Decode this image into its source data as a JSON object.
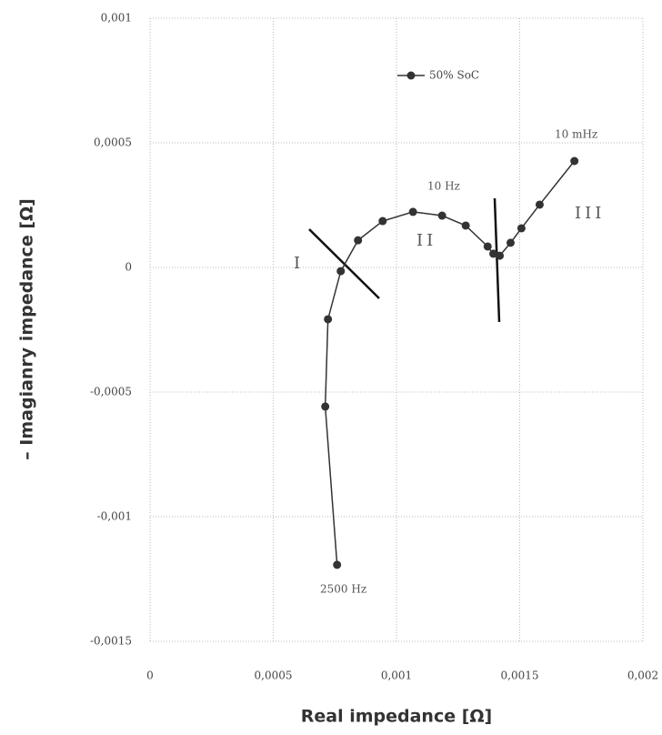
{
  "chart_data": {
    "type": "scatter_line",
    "x_label": "Real impedance [Ω]",
    "y_label": "– Imagianry impedance [Ω]",
    "annotations": [
      "2500 Hz",
      "10 Hz",
      "10 mHz",
      "I",
      "II",
      "III"
    ],
    "series": [
      {
        "name": "50% SoC",
        "color": "#333333",
        "x": [
          0.000759,
          0.000711,
          0.000722,
          0.000774,
          0.000844,
          0.000944,
          0.001067,
          0.001185,
          0.001281,
          0.00137,
          0.001393,
          0.001419,
          0.001463,
          0.001507,
          0.001581,
          0.001722
        ],
        "values": [
          -0.001193,
          -0.000558,
          -0.000208,
          -1.5e-05,
          0.000109,
          0.000186,
          0.000223,
          0.000208,
          0.000168,
          8.4e-05,
          5.5e-05,
          4.7e-05,
          9.9e-05,
          0.000157,
          0.000252,
          0.000427
        ]
      }
    ],
    "xlim": [
      0,
      0.002
    ],
    "xticks": [
      0,
      {
        "value": 0.0005,
        "label": "0,0005"
      },
      {
        "value": 0.001,
        "label": "0,001"
      },
      {
        "value": 0.0015,
        "label": "0,0015"
      },
      {
        "value": 0.002,
        "label": "0,002"
      }
    ],
    "ylim": [
      -0.0015,
      0.001
    ],
    "yticks": [
      {
        "value": -0.0015,
        "label": "-0,0015"
      },
      {
        "value": -0.001,
        "label": "-0,001"
      },
      {
        "value": -0.0005,
        "label": "-0,0005"
      },
      0,
      {
        "value": 0.0005,
        "label": "0,0005"
      },
      {
        "value": 0.001,
        "label": "0,001"
      }
    ],
    "grid": true
  }
}
